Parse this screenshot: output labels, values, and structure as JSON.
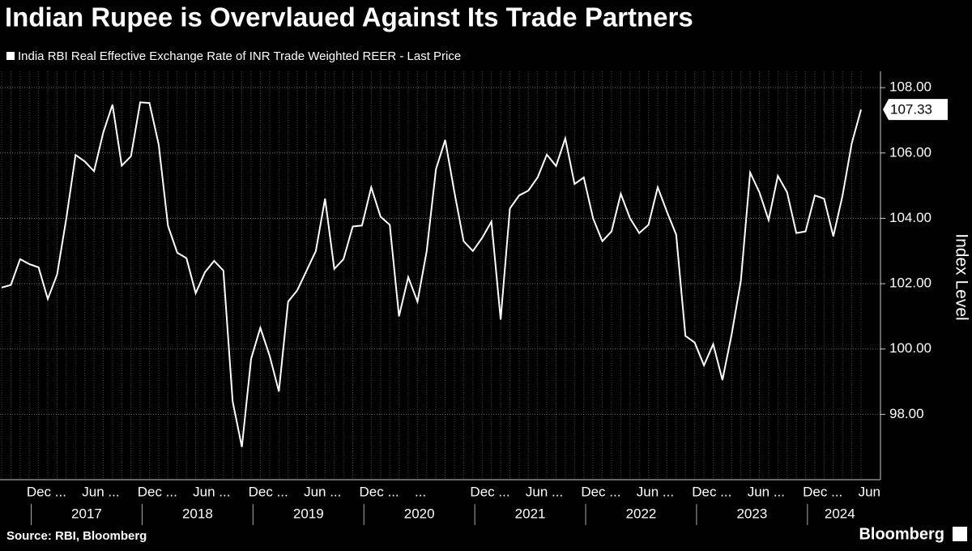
{
  "chart_data": {
    "type": "line",
    "title": "Indian Rupee is Overvlaued Against Its Trade Partners",
    "y_axis_label": "Index Level",
    "source": "Source: RBI, Bloomberg",
    "brand": "Bloomberg",
    "x": [
      "2016-10",
      "2016-11",
      "2016-12",
      "2017-01",
      "2017-02",
      "2017-03",
      "2017-04",
      "2017-05",
      "2017-06",
      "2017-07",
      "2017-08",
      "2017-09",
      "2017-10",
      "2017-11",
      "2017-12",
      "2018-01",
      "2018-02",
      "2018-03",
      "2018-04",
      "2018-05",
      "2018-06",
      "2018-07",
      "2018-08",
      "2018-09",
      "2018-10",
      "2018-11",
      "2018-12",
      "2019-01",
      "2019-02",
      "2019-03",
      "2019-04",
      "2019-05",
      "2019-06",
      "2019-07",
      "2019-08",
      "2019-09",
      "2019-10",
      "2019-11",
      "2019-12",
      "2020-01",
      "2020-02",
      "2020-03",
      "2020-04",
      "2020-05",
      "2020-06",
      "2020-07",
      "2020-08",
      "2020-09",
      "2020-10",
      "2020-11",
      "2020-12",
      "2021-01",
      "2021-02",
      "2021-03",
      "2021-04",
      "2021-05",
      "2021-06",
      "2021-07",
      "2021-08",
      "2021-09",
      "2021-10",
      "2021-11",
      "2021-12",
      "2022-01",
      "2022-02",
      "2022-03",
      "2022-04",
      "2022-05",
      "2022-06",
      "2022-07",
      "2022-08",
      "2022-09",
      "2022-10",
      "2022-11",
      "2022-12",
      "2023-01",
      "2023-02",
      "2023-03",
      "2023-04",
      "2023-05",
      "2023-06",
      "2023-07",
      "2023-08",
      "2023-09",
      "2023-10",
      "2023-11",
      "2023-12",
      "2024-01",
      "2024-02",
      "2024-03",
      "2024-04",
      "2024-05",
      "2024-06",
      "2024-07"
    ],
    "series": [
      {
        "name": "India RBI Real Effective Exchange Rate of INR Trade Weighted REER - Last Price",
        "color": "#ffffff",
        "values": [
          101.88,
          101.96,
          102.75,
          102.6,
          102.5,
          101.53,
          102.28,
          104.0,
          105.94,
          105.74,
          105.44,
          106.63,
          107.48,
          105.61,
          105.9,
          107.55,
          107.53,
          106.26,
          103.77,
          102.95,
          102.78,
          101.71,
          102.35,
          102.7,
          102.4,
          98.4,
          97.0,
          99.7,
          100.65,
          99.8,
          98.7,
          101.45,
          101.8,
          102.4,
          103.0,
          104.6,
          102.45,
          102.75,
          103.75,
          103.78,
          104.95,
          104.05,
          103.8,
          101.0,
          102.2,
          101.45,
          103.0,
          105.5,
          106.4,
          104.8,
          103.3,
          103.0,
          103.4,
          103.9,
          100.9,
          104.3,
          104.7,
          104.85,
          105.25,
          105.95,
          105.6,
          106.45,
          105.05,
          105.25,
          104.0,
          103.3,
          103.6,
          104.75,
          104.0,
          103.55,
          103.8,
          104.95,
          104.2,
          103.5,
          100.4,
          100.2,
          99.5,
          100.15,
          99.05,
          100.45,
          102.1,
          105.4,
          104.8,
          103.95,
          105.3,
          104.8,
          103.55,
          103.6,
          104.7,
          104.6,
          103.45,
          104.7,
          106.3,
          107.33
        ]
      }
    ],
    "ylim": [
      96,
      108.5
    ],
    "yticks": [
      {
        "value": 98,
        "label": "98.00"
      },
      {
        "value": 100,
        "label": "100.00"
      },
      {
        "value": 102,
        "label": "102.00"
      },
      {
        "value": 104,
        "label": "104.00"
      },
      {
        "value": 106,
        "label": "106.00"
      },
      {
        "value": 108,
        "label": "108.00"
      }
    ],
    "xticks": [
      {
        "value": "2016-12",
        "label": "Dec ..."
      },
      {
        "value": "2017-06",
        "label": "Jun ..."
      },
      {
        "value": "2017-12",
        "label": "Dec ..."
      },
      {
        "value": "2018-06",
        "label": "Jun ..."
      },
      {
        "value": "2018-12",
        "label": "Dec ..."
      },
      {
        "value": "2019-06",
        "label": "Jun ..."
      },
      {
        "value": "2019-12",
        "label": "Dec ..."
      },
      {
        "value": "2020-06",
        "label": "..."
      },
      {
        "value": "2020-12",
        "label": "Dec ..."
      },
      {
        "value": "2021-06",
        "label": "Jun ..."
      },
      {
        "value": "2021-12",
        "label": "Dec ..."
      },
      {
        "value": "2022-06",
        "label": "Jun ..."
      },
      {
        "value": "2022-12",
        "label": "Dec ..."
      },
      {
        "value": "2023-06",
        "label": "Jun ..."
      },
      {
        "value": "2023-12",
        "label": "Dec ..."
      },
      {
        "value": "2024-06",
        "label": "Jun"
      }
    ],
    "year_labels": [
      "2017",
      "2018",
      "2019",
      "2020",
      "2021",
      "2022",
      "2023",
      "2024"
    ],
    "grid": true
  }
}
